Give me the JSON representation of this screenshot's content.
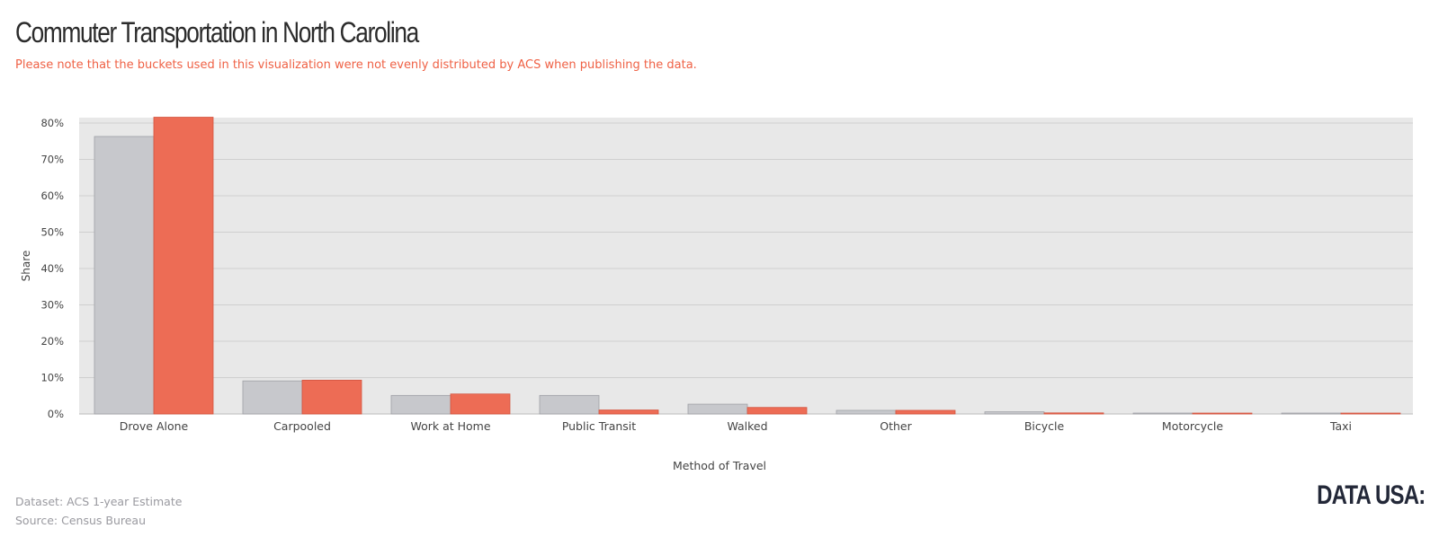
{
  "title": "Commuter Transportation in North Carolina",
  "subtitle": "Please note that the buckets used in this visualization were not evenly distributed by ACS when publishing the data.",
  "footer": {
    "dataset": "Dataset: ACS 1-year Estimate",
    "source": "Source: Census Bureau"
  },
  "logo": "DATA USA:",
  "colors": {
    "series_a": "#c7c8cc",
    "series_b": "#ed6c55",
    "plot_bg": "#e8e8e8",
    "grid": "#cfcfcf"
  },
  "chart_data": {
    "type": "bar",
    "xlabel": "Method of Travel",
    "ylabel": "Share",
    "ylim": [
      0,
      80
    ],
    "yticks": [
      "0%",
      "10%",
      "20%",
      "30%",
      "40%",
      "50%",
      "60%",
      "70%",
      "80%"
    ],
    "categories": [
      "Drove Alone",
      "Carpooled",
      "Work at Home",
      "Public Transit",
      "Walked",
      "Other",
      "Bicycle",
      "Motorcycle",
      "Taxi"
    ],
    "series": [
      {
        "values": [
          76.3,
          9.1,
          5.1,
          5.1,
          2.7,
          1.0,
          0.6,
          0.2,
          0.2
        ]
      },
      {
        "values": [
          81.6,
          9.3,
          5.5,
          1.1,
          1.8,
          1.0,
          0.3,
          0.2,
          0.2
        ]
      }
    ],
    "grid": true,
    "legend": "none"
  }
}
